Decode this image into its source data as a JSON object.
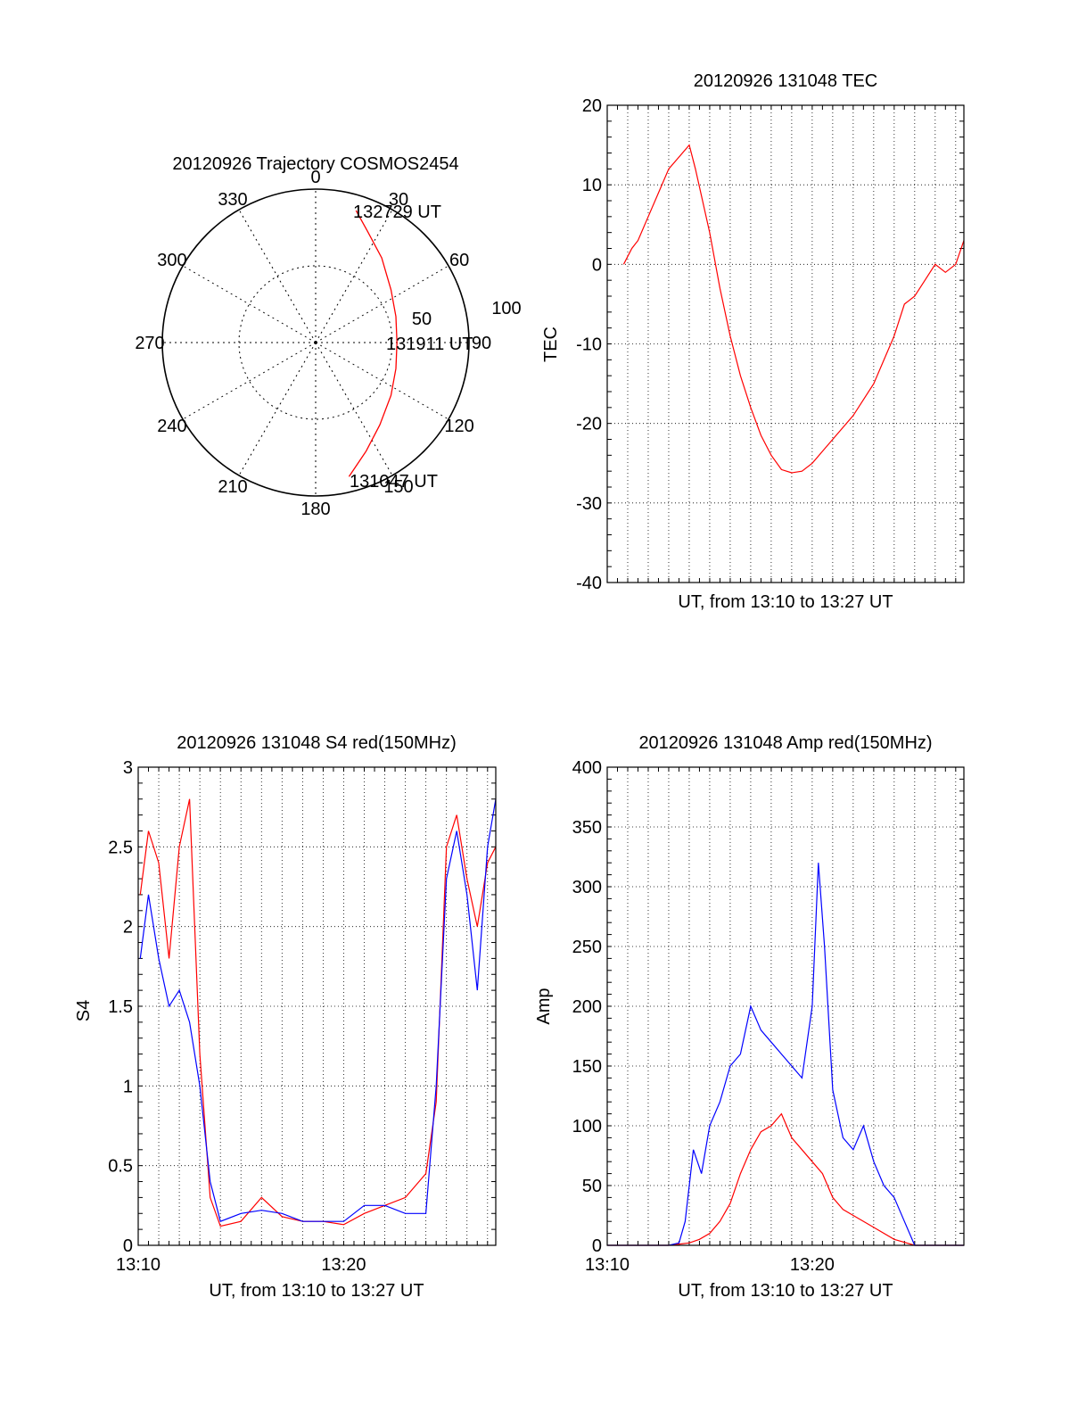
{
  "colors": {
    "red": "#ff0000",
    "blue": "#0000ff",
    "grid": "#000000"
  },
  "chart_data": [
    {
      "type": "polar",
      "title": "20120926 Trajectory COSMOS2454",
      "angle_labels": [
        "0",
        "30",
        "60",
        "90",
        "120",
        "150",
        "180",
        "210",
        "240",
        "270",
        "300",
        "330"
      ],
      "radial_labels": [
        "50",
        "100"
      ],
      "rmax": 100,
      "start_label": "131047 UT",
      "mid_label": "131911 UT",
      "end_label": "132729 UT",
      "trajectory": [
        {
          "az": 166,
          "zen": 90
        },
        {
          "az": 155,
          "zen": 78
        },
        {
          "az": 142,
          "zen": 68
        },
        {
          "az": 125,
          "zen": 60
        },
        {
          "az": 108,
          "zen": 55
        },
        {
          "az": 90,
          "zen": 53
        },
        {
          "az": 72,
          "zen": 55
        },
        {
          "az": 55,
          "zen": 60
        },
        {
          "az": 38,
          "zen": 70
        },
        {
          "az": 25,
          "zen": 80
        },
        {
          "az": 17,
          "zen": 90
        }
      ]
    },
    {
      "type": "line",
      "title": "20120926 131048 TEC",
      "xlabel": "UT, from 13:10 to 13:27 UT",
      "ylabel": "TEC",
      "xlim": [
        0,
        17.4
      ],
      "ylim": [
        -40,
        20
      ],
      "yticks": [
        "20",
        "10",
        "0",
        "-10",
        "-20",
        "-30",
        "-40"
      ],
      "xticks": [],
      "series": [
        {
          "color": "red",
          "x": [
            0.8,
            1.2,
            1.5,
            2,
            2.5,
            3,
            3.5,
            4,
            4.3,
            5,
            5.5,
            6,
            6.5,
            7,
            7.5,
            8,
            8.5,
            9,
            9.5,
            10,
            10.5,
            11,
            12,
            13,
            14,
            14.5,
            15,
            15.5,
            16,
            16.5,
            17,
            17.4
          ],
          "y": [
            0,
            2,
            3,
            6,
            9,
            12,
            13.5,
            15,
            12,
            4,
            -3,
            -9,
            -14,
            -18,
            -21.5,
            -24,
            -25.8,
            -26.2,
            -26,
            -25,
            -23.5,
            -22,
            -19,
            -15,
            -9,
            -5,
            -4,
            -2,
            0,
            -1,
            0,
            3
          ]
        }
      ]
    },
    {
      "type": "line",
      "title": "20120926 131048 S4 red(150MHz)",
      "xlabel": "UT, from 13:10 to 13:27 UT",
      "ylabel": "S4",
      "xlim": [
        0,
        17.4
      ],
      "ylim": [
        0,
        3
      ],
      "yticks": [
        "0",
        "0.5",
        "1",
        "1.5",
        "2",
        "2.5",
        "3"
      ],
      "xticks": [
        {
          "x": 0,
          "label": "13:10"
        },
        {
          "x": 10,
          "label": "13:20"
        }
      ],
      "series": [
        {
          "name": "red",
          "color": "red",
          "x": [
            0.1,
            0.5,
            1,
            1.5,
            2,
            2.5,
            3,
            3.5,
            4,
            5,
            6,
            7,
            8,
            9,
            10,
            11,
            12,
            13,
            14,
            14.5,
            15,
            15.5,
            16,
            16.5,
            17,
            17.4
          ],
          "y": [
            2.2,
            2.6,
            2.4,
            1.8,
            2.5,
            2.8,
            1.2,
            0.3,
            0.12,
            0.15,
            0.3,
            0.18,
            0.15,
            0.15,
            0.13,
            0.2,
            0.25,
            0.3,
            0.45,
            0.9,
            2.5,
            2.7,
            2.3,
            2.0,
            2.4,
            2.5
          ]
        },
        {
          "name": "blue",
          "color": "blue",
          "x": [
            0.1,
            0.5,
            1,
            1.5,
            2,
            2.5,
            3,
            3.5,
            4,
            5,
            6,
            7,
            8,
            9,
            10,
            11,
            12,
            13,
            14,
            14.5,
            15,
            15.5,
            16,
            16.5,
            17,
            17.4
          ],
          "y": [
            1.8,
            2.2,
            1.8,
            1.5,
            1.6,
            1.4,
            1.0,
            0.4,
            0.15,
            0.2,
            0.22,
            0.2,
            0.15,
            0.15,
            0.15,
            0.25,
            0.25,
            0.2,
            0.2,
            1.0,
            2.3,
            2.6,
            2.2,
            1.6,
            2.5,
            2.8
          ]
        }
      ]
    },
    {
      "type": "line",
      "title": "20120926 131048 Amp red(150MHz)",
      "xlabel": "UT, from 13:10 to 13:27 UT",
      "ylabel": "Amp",
      "xlim": [
        0,
        17.4
      ],
      "ylim": [
        0,
        400
      ],
      "yticks": [
        "0",
        "50",
        "100",
        "150",
        "200",
        "250",
        "300",
        "350",
        "400"
      ],
      "xticks": [
        {
          "x": 0,
          "label": "13:10"
        },
        {
          "x": 10,
          "label": "13:20"
        }
      ],
      "series": [
        {
          "name": "red",
          "color": "red",
          "x": [
            0,
            3,
            4,
            4.5,
            5,
            5.5,
            6,
            6.5,
            7,
            7.5,
            8,
            8.5,
            9,
            9.5,
            10,
            10.5,
            11,
            11.5,
            12,
            13,
            14,
            15,
            17.4
          ],
          "y": [
            0,
            0,
            2,
            5,
            10,
            20,
            35,
            60,
            80,
            95,
            100,
            110,
            90,
            80,
            70,
            60,
            40,
            30,
            25,
            15,
            5,
            0,
            0
          ]
        },
        {
          "name": "blue",
          "color": "blue",
          "x": [
            0,
            3,
            3.5,
            3.8,
            4.2,
            4.6,
            5,
            5.5,
            6,
            6.5,
            7,
            7.5,
            8,
            8.5,
            9,
            9.5,
            10,
            10.3,
            10.6,
            11,
            11.5,
            12,
            12.5,
            13,
            13.5,
            14,
            14.5,
            15,
            17.4
          ],
          "y": [
            0,
            0,
            2,
            20,
            80,
            60,
            100,
            120,
            150,
            160,
            200,
            180,
            170,
            160,
            150,
            140,
            200,
            320,
            250,
            130,
            90,
            80,
            100,
            70,
            50,
            40,
            20,
            0,
            0
          ]
        }
      ]
    }
  ]
}
